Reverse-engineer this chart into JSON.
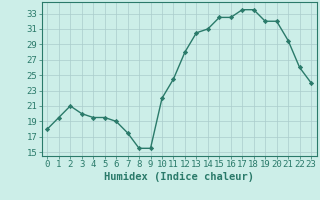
{
  "x": [
    0,
    1,
    2,
    3,
    4,
    5,
    6,
    7,
    8,
    9,
    10,
    11,
    12,
    13,
    14,
    15,
    16,
    17,
    18,
    19,
    20,
    21,
    22,
    23
  ],
  "y": [
    18,
    19.5,
    21,
    20,
    19.5,
    19.5,
    19,
    17.5,
    15.5,
    15.5,
    22,
    24.5,
    28,
    30.5,
    31,
    32.5,
    32.5,
    33.5,
    33.5,
    32,
    32,
    29.5,
    26,
    24
  ],
  "line_color": "#2a7a6a",
  "marker": "D",
  "marker_size": 2.2,
  "bg_color": "#cceee8",
  "grid_color": "#aacccc",
  "xlabel": "Humidex (Indice chaleur)",
  "xlim": [
    -0.5,
    23.5
  ],
  "ylim": [
    14.5,
    34.5
  ],
  "yticks": [
    15,
    17,
    19,
    21,
    23,
    25,
    27,
    29,
    31,
    33
  ],
  "xtick_labels": [
    "0",
    "1",
    "2",
    "3",
    "4",
    "5",
    "6",
    "7",
    "8",
    "9",
    "10",
    "11",
    "12",
    "13",
    "14",
    "15",
    "16",
    "17",
    "18",
    "19",
    "20",
    "21",
    "22",
    "23"
  ],
  "xlabel_fontsize": 7.5,
  "tick_fontsize": 6.5,
  "line_width": 1.0
}
